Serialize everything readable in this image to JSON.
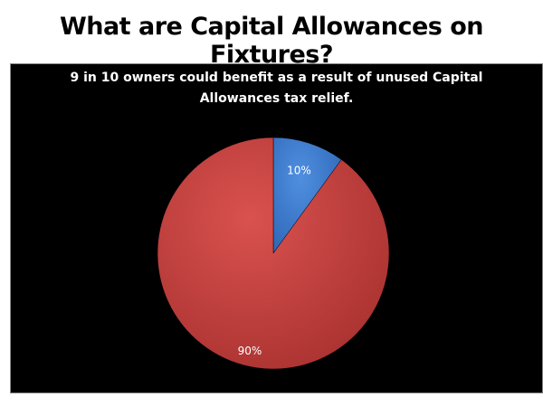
{
  "header": {
    "title": "What are Capital Allowances on Fixtures?"
  },
  "chart_data": {
    "type": "pie",
    "title": "9 in 10 owners could benefit as a result of unused Capital Allowances tax relief.",
    "title_lines": [
      "9 in 10 owners could benefit as a result of unused Capital",
      "Allowances tax relief."
    ],
    "slices": [
      {
        "value": 10,
        "label": "10%",
        "color": "#3f7fd4"
      },
      {
        "value": 90,
        "label": "90%",
        "color": "#c9413f"
      }
    ],
    "start_angle": "12 o'clock, clockwise",
    "background": "#000000",
    "legend": "none"
  }
}
